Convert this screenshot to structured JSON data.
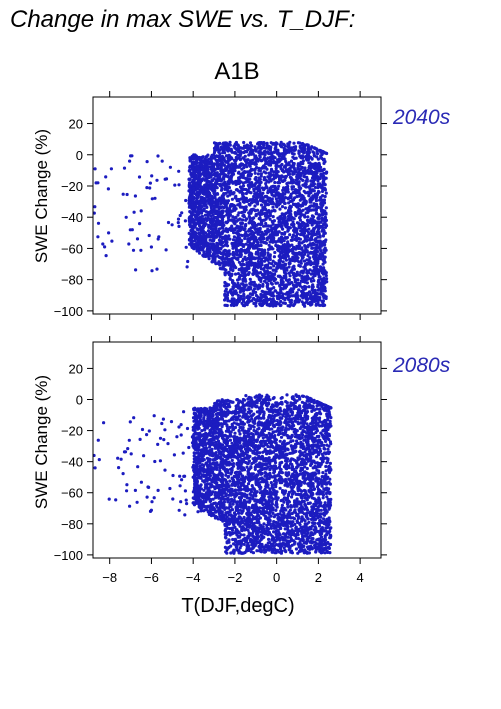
{
  "page_title": "Change in max SWE vs. T_DJF:",
  "scenario_label": "A1B",
  "colors": {
    "points": "#1c1cc0",
    "period_label": "#2a2ab5",
    "axis": "#000000"
  },
  "chart_data": [
    {
      "type": "scatter",
      "panel_label": "2040s",
      "xlabel": "",
      "ylabel": "SWE Change (%)",
      "xlim": [
        -8.8,
        5.0
      ],
      "ylim": [
        -102,
        37
      ],
      "xticks": [
        -8,
        -6,
        -4,
        -2,
        0,
        2,
        4
      ],
      "yticks": [
        20,
        0,
        -20,
        -40,
        -60,
        -80,
        -100
      ],
      "show_x_tick_labels": false,
      "grid": false,
      "cloud": {
        "x_core": [
          -4.2,
          2.4
        ],
        "y_core": [
          -97,
          8
        ],
        "x_outliers_min": -8.8,
        "trend": "drier at warmer T, larger losses toward +1 to +3 degC"
      }
    },
    {
      "type": "scatter",
      "panel_label": "2080s",
      "xlabel": "T(DJF,degC)",
      "ylabel": "SWE Change (%)",
      "xlim": [
        -8.8,
        5.0
      ],
      "ylim": [
        -102,
        37
      ],
      "xticks": [
        -8,
        -6,
        -4,
        -2,
        0,
        2,
        4
      ],
      "xtick_labels": [
        "-8",
        "-6",
        "-4",
        "-2",
        "0",
        "2",
        "4"
      ],
      "yticks": [
        20,
        0,
        -20,
        -40,
        -60,
        -80,
        -100
      ],
      "show_x_tick_labels": true,
      "grid": false,
      "cloud": {
        "x_core": [
          -4.0,
          2.6
        ],
        "y_core": [
          -99,
          3
        ],
        "x_outliers_min": -8.8,
        "trend": "larger losses than 2040s, clustering near -100%"
      }
    }
  ]
}
